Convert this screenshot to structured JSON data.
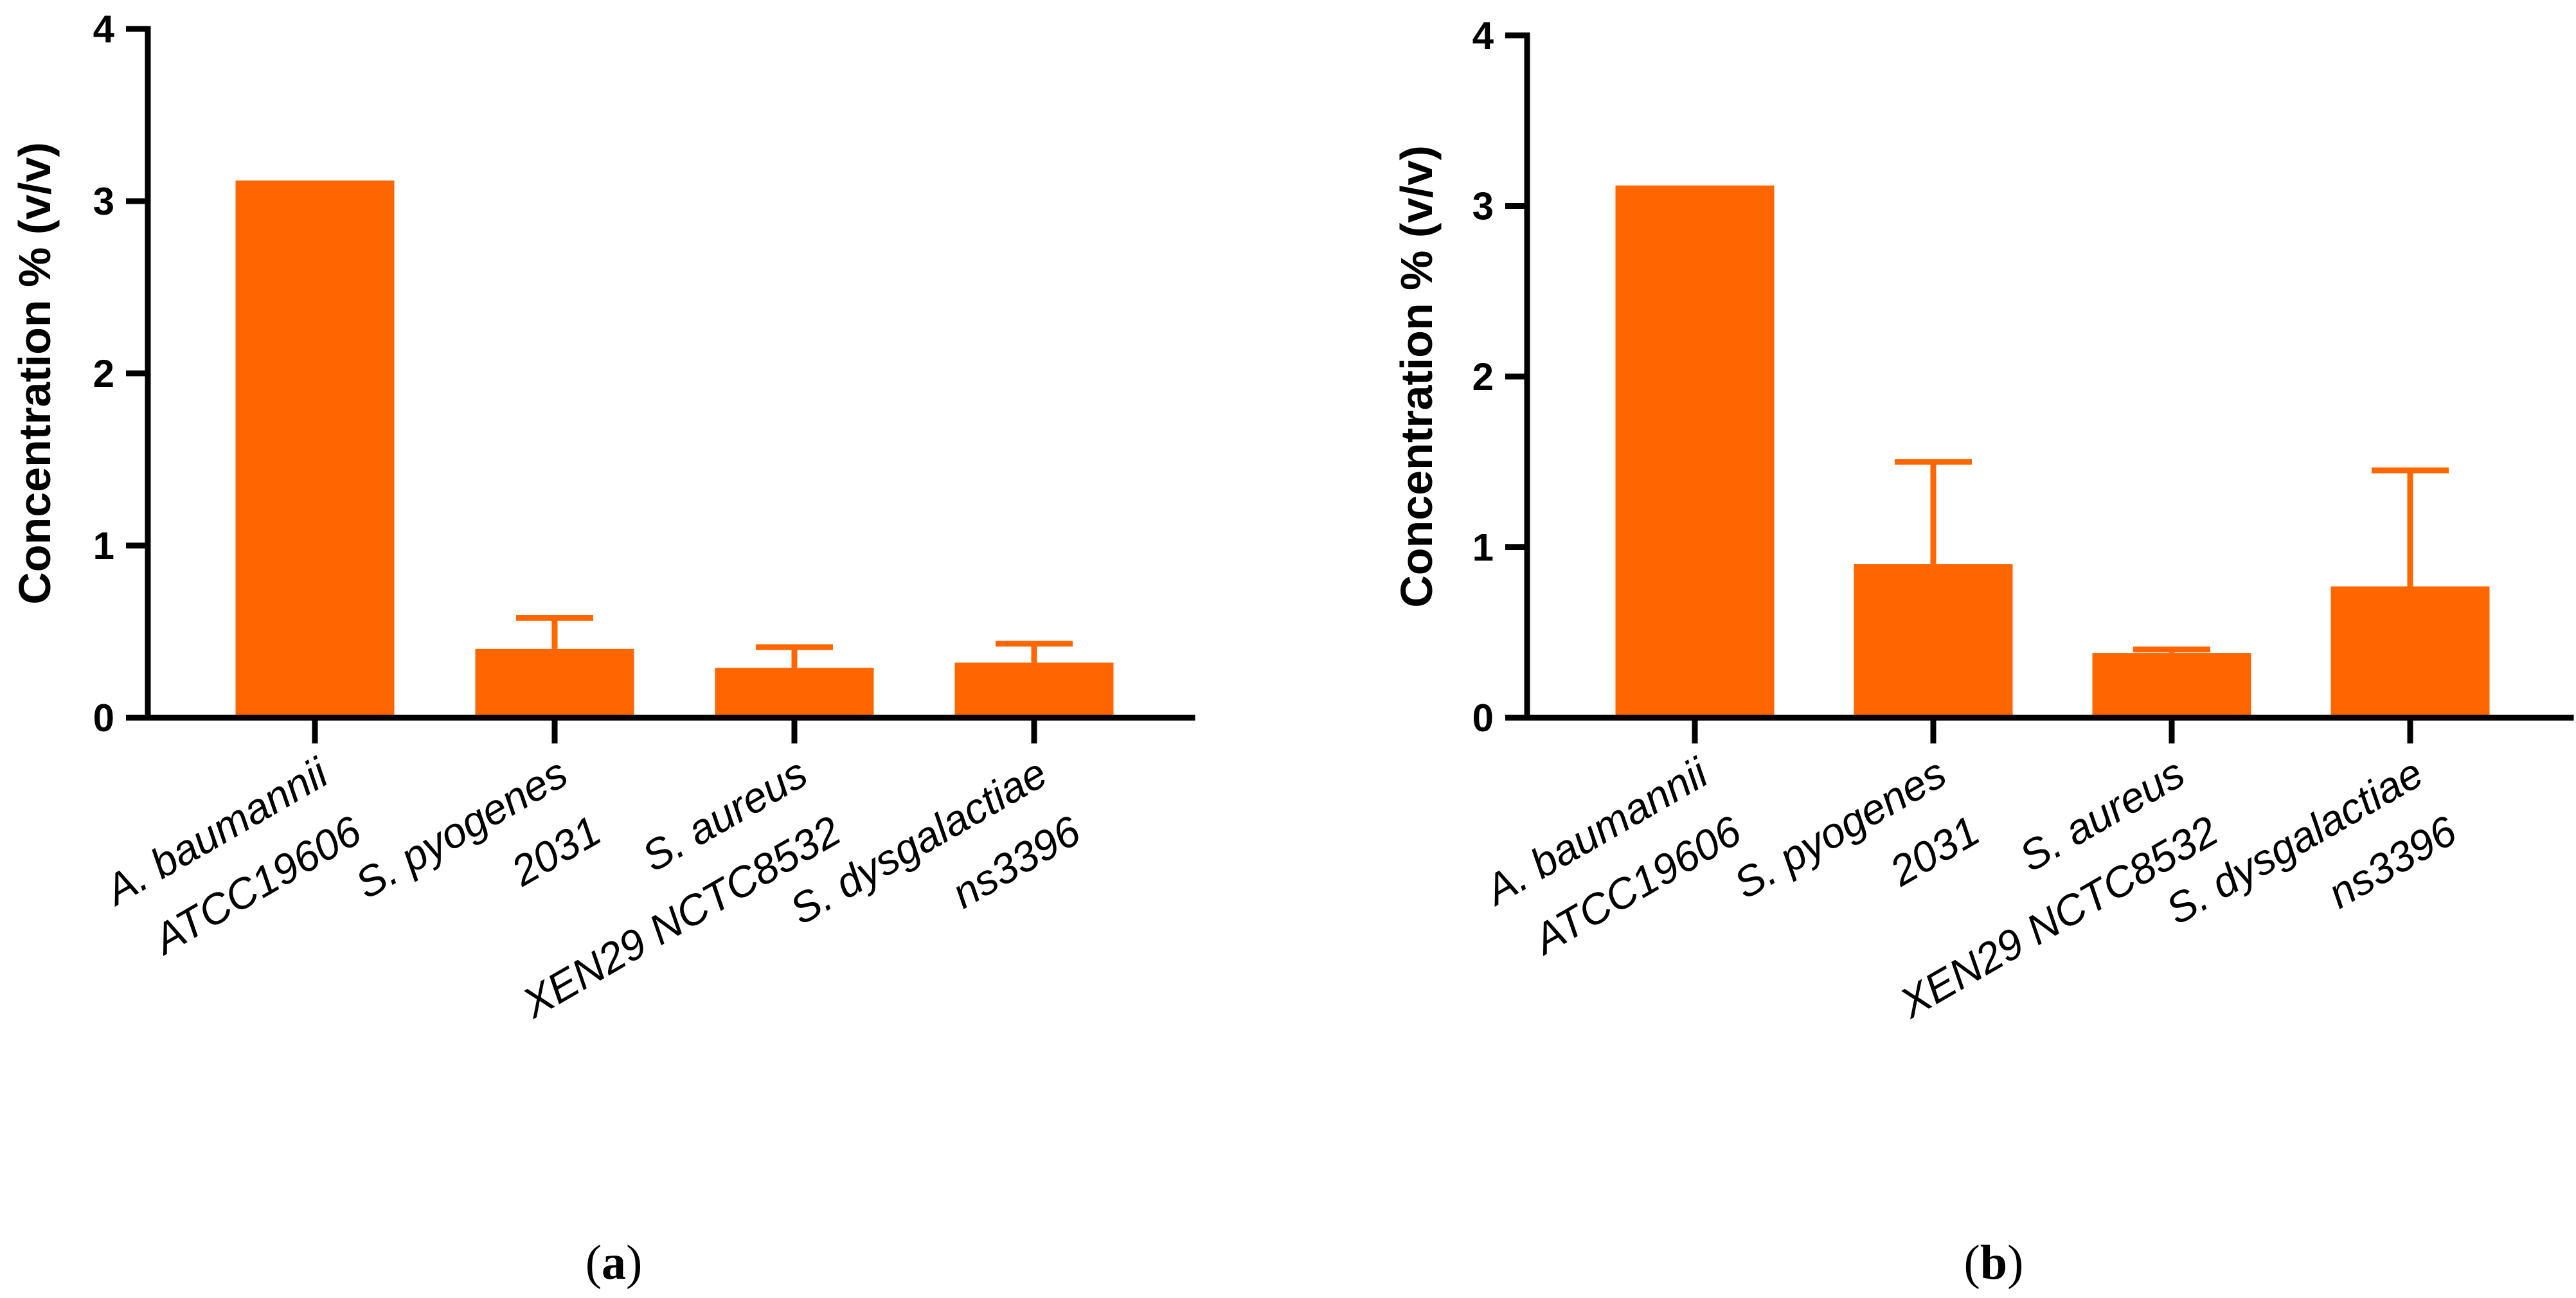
{
  "colors": {
    "bar": "#FF6600",
    "axis": "#000000"
  },
  "chart_data": [
    {
      "type": "bar",
      "panel": "a",
      "ylabel": "Concentration % (v/v)",
      "ylim": [
        0,
        4
      ],
      "yticks": [
        0,
        1,
        2,
        3,
        4
      ],
      "categories": [
        [
          "A. baumannii",
          "ATCC19606"
        ],
        [
          "S. pyogenes",
          "2031"
        ],
        [
          "S. aureus",
          "XEN29 NCTC8532"
        ],
        [
          "S. dysgalactiae",
          "ns3396"
        ]
      ],
      "values": [
        3.12,
        0.4,
        0.29,
        0.32
      ],
      "errors": [
        0,
        0.18,
        0.12,
        0.11
      ]
    },
    {
      "type": "bar",
      "panel": "b",
      "ylabel": "Concentration % (v/v)",
      "ylim": [
        0,
        4
      ],
      "yticks": [
        0,
        1,
        2,
        3,
        4
      ],
      "categories": [
        [
          "A. baumannii",
          "ATCC19606"
        ],
        [
          "S. pyogenes",
          "2031"
        ],
        [
          "S. aureus",
          "XEN29 NCTC8532"
        ],
        [
          "S. dysgalactiae",
          "ns3396"
        ]
      ],
      "values": [
        3.12,
        0.9,
        0.38,
        0.77
      ],
      "errors": [
        0,
        0.6,
        0.02,
        0.68
      ]
    }
  ]
}
